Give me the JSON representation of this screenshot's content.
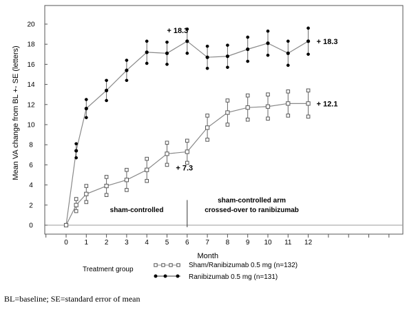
{
  "chart_data": {
    "type": "line",
    "ylabel": "Mean VA change from BL +- SE (letters)",
    "xlabel": "Month",
    "ylim": [
      0,
      20
    ],
    "xlim": [
      0,
      12
    ],
    "y_ticks": [
      0,
      2,
      4,
      6,
      8,
      10,
      12,
      14,
      16,
      18,
      20
    ],
    "x_ticks": [
      0,
      1,
      2,
      3,
      4,
      5,
      6,
      7,
      8,
      9,
      10,
      11,
      12
    ],
    "grid": false,
    "series": [
      {
        "name": "Ranibizumab 0.5 mg (n=131)",
        "marker": "filled-circle",
        "color": "#000000",
        "x": [
          0,
          0.5,
          1,
          2,
          3,
          4,
          5,
          6,
          7,
          8,
          9,
          10,
          11,
          12
        ],
        "y": [
          0,
          7.4,
          11.6,
          13.4,
          15.4,
          17.2,
          17.1,
          18.3,
          16.7,
          16.8,
          17.5,
          18.1,
          17.1,
          18.3
        ],
        "err": [
          0,
          0.7,
          0.9,
          1.0,
          1.0,
          1.1,
          1.1,
          1.2,
          1.1,
          1.1,
          1.2,
          1.2,
          1.2,
          1.3
        ]
      },
      {
        "name": "Sham/Ranibizumab 0.5 mg (n=132)",
        "marker": "open-square",
        "color": "#000000",
        "x": [
          0,
          0.5,
          1,
          2,
          3,
          4,
          5,
          6,
          7,
          8,
          9,
          10,
          11,
          12
        ],
        "y": [
          0,
          2.0,
          3.1,
          3.9,
          4.5,
          5.5,
          7.1,
          7.3,
          9.7,
          11.2,
          11.7,
          11.8,
          12.1,
          12.1
        ],
        "err": [
          0,
          0.6,
          0.8,
          0.9,
          1.0,
          1.1,
          1.1,
          1.1,
          1.2,
          1.2,
          1.2,
          1.2,
          1.2,
          1.3
        ]
      }
    ],
    "annotations": [
      {
        "text": "+ 18.3",
        "anchor": "ranibizumab-month-6"
      },
      {
        "text": "+ 18.3",
        "anchor": "ranibizumab-month-12"
      },
      {
        "text": "+ 7.3",
        "anchor": "sham-month-6"
      },
      {
        "text": "+ 12.1",
        "anchor": "sham-month-12"
      }
    ],
    "regions": [
      {
        "label": "sham-controlled"
      },
      {
        "label": "sham-controlled arm\ncrossed-over to ranibizumab"
      }
    ],
    "legend": {
      "title": "Treatment group",
      "placement": "bottom",
      "entries": [
        "Sham/Ranibizumab 0.5 mg (n=132)",
        "Ranibizumab 0.5 mg (n=131)"
      ]
    }
  },
  "footnote": "BL=baseline; SE=standard error of mean"
}
